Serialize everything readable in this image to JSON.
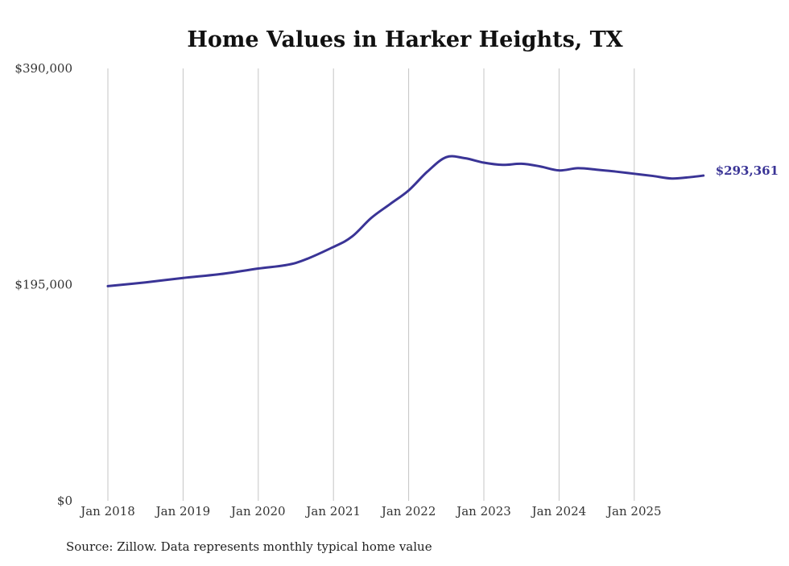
{
  "chart_data": {
    "type": "line",
    "title": "Home Values in Harker Heights, TX",
    "xlabel": "",
    "ylabel": "",
    "ylim": [
      0,
      390000
    ],
    "xlim": [
      2018.0,
      2025.92
    ],
    "y_ticks": [
      0,
      195000,
      390000
    ],
    "y_tick_labels": [
      "$0",
      "$195,000",
      "$390,000"
    ],
    "x_ticks": [
      2018,
      2019,
      2020,
      2021,
      2022,
      2023,
      2024,
      2025
    ],
    "x_tick_labels": [
      "Jan 2018",
      "Jan 2019",
      "Jan 2020",
      "Jan 2021",
      "Jan 2022",
      "Jan 2023",
      "Jan 2024",
      "Jan 2025"
    ],
    "grid": "vertical",
    "series": [
      {
        "name": "Typical home value",
        "color": "#3a3496",
        "x": [
          2018.0,
          2018.5,
          2019.0,
          2019.5,
          2020.0,
          2020.5,
          2021.0,
          2021.25,
          2021.5,
          2021.75,
          2022.0,
          2022.25,
          2022.5,
          2022.75,
          2023.0,
          2023.25,
          2023.5,
          2023.75,
          2024.0,
          2024.25,
          2024.5,
          2024.75,
          2025.0,
          2025.25,
          2025.5,
          2025.75,
          2025.92
        ],
        "values": [
          193600,
          197000,
          201000,
          204500,
          209500,
          214600,
          229000,
          238500,
          255000,
          267500,
          280000,
          297000,
          310000,
          309000,
          305000,
          303000,
          304000,
          301600,
          298000,
          300000,
          298700,
          297000,
          295000,
          293000,
          290700,
          292000,
          293361
        ]
      }
    ],
    "end_label": "$293,361",
    "source": "Source: Zillow. Data represents monthly typical home value"
  }
}
